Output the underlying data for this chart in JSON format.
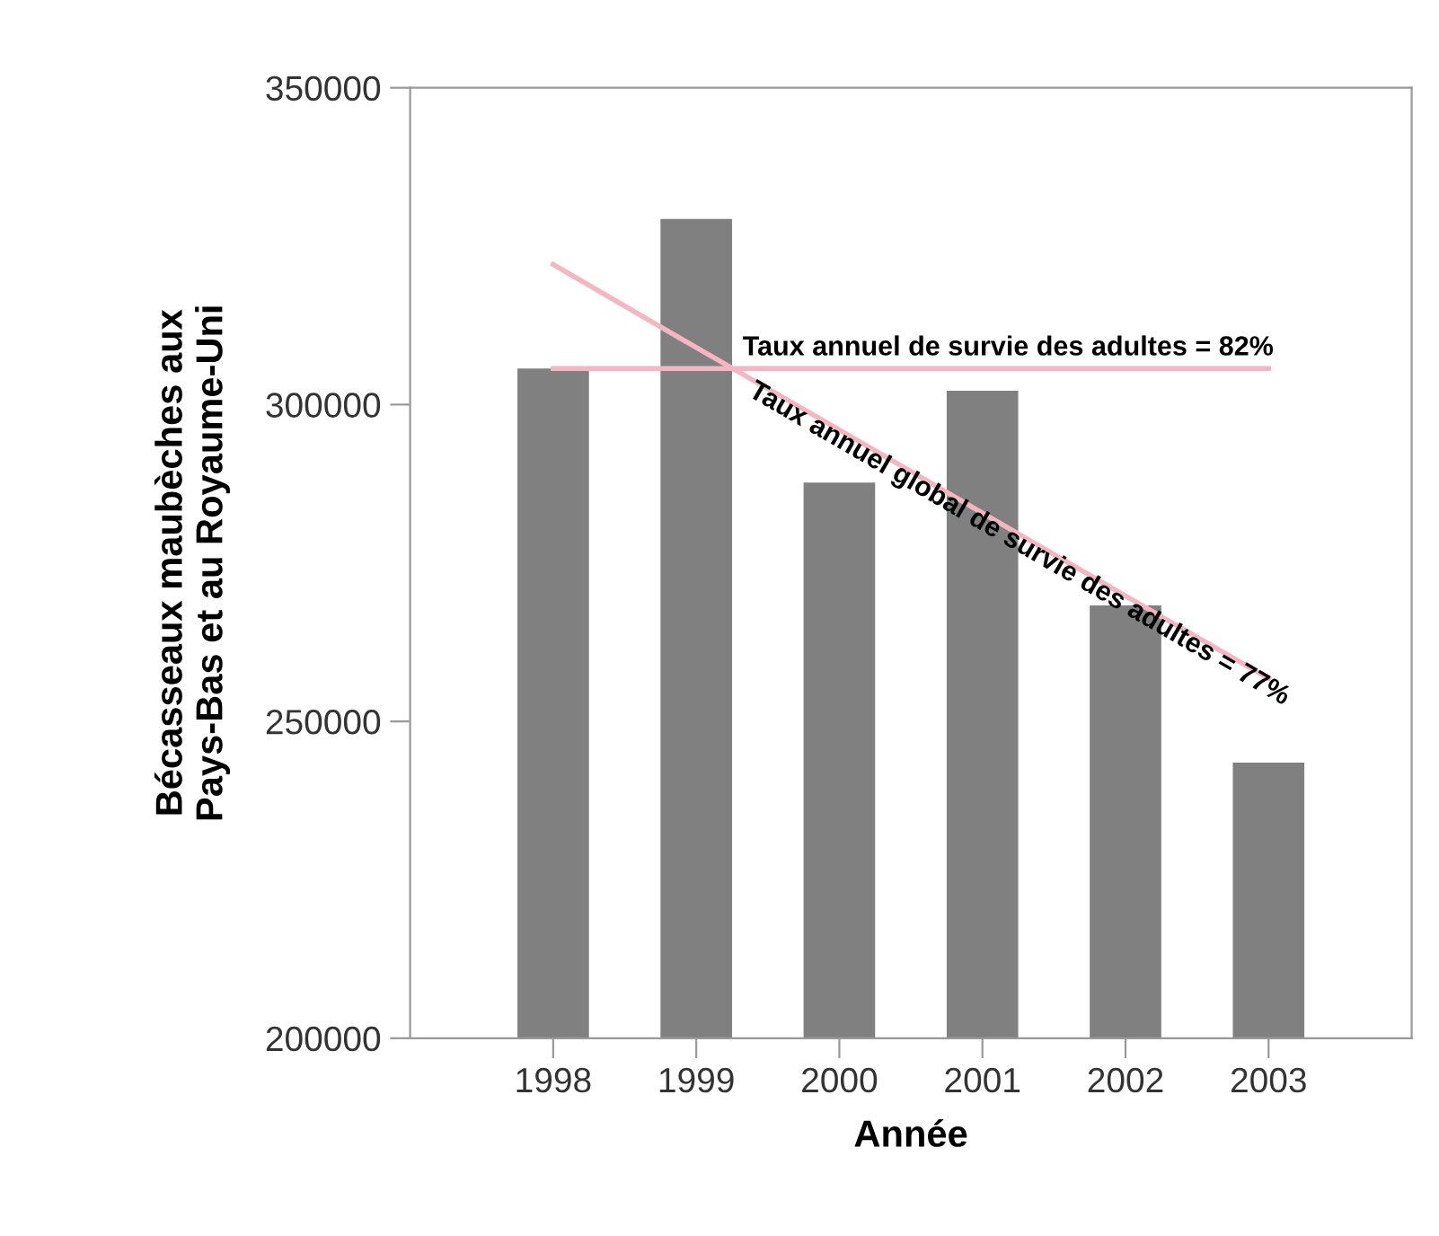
{
  "chart_data": {
    "type": "bar",
    "xlabel": "Année",
    "ylabel": "Bécasseaux maubèches aux\nPays-Bas et au Royaume-Uni",
    "categories": [
      "1998",
      "1999",
      "2000",
      "2001",
      "2002",
      "2003"
    ],
    "series": [
      {
        "color": "#808080",
        "values": [
          305700,
          329300,
          287700,
          302200,
          268300,
          243500
        ]
      },
      {
        "type": "line",
        "name": "Taux annuel de survie des adultes = 82%",
        "color": "#f4b6c2",
        "values": [
          305700,
          305700,
          305700,
          305700,
          305700,
          305700
        ]
      },
      {
        "type": "line",
        "name": "Taux annuel global de survie des adultes = 77%",
        "color": "#f4b6c2",
        "values": [
          322100,
          309000,
          296000,
          282900,
          269800,
          256800
        ]
      }
    ],
    "ylim": [
      200000,
      350000
    ],
    "yticks": [
      200000,
      250000,
      300000,
      350000
    ],
    "grid": false,
    "legend": false
  }
}
